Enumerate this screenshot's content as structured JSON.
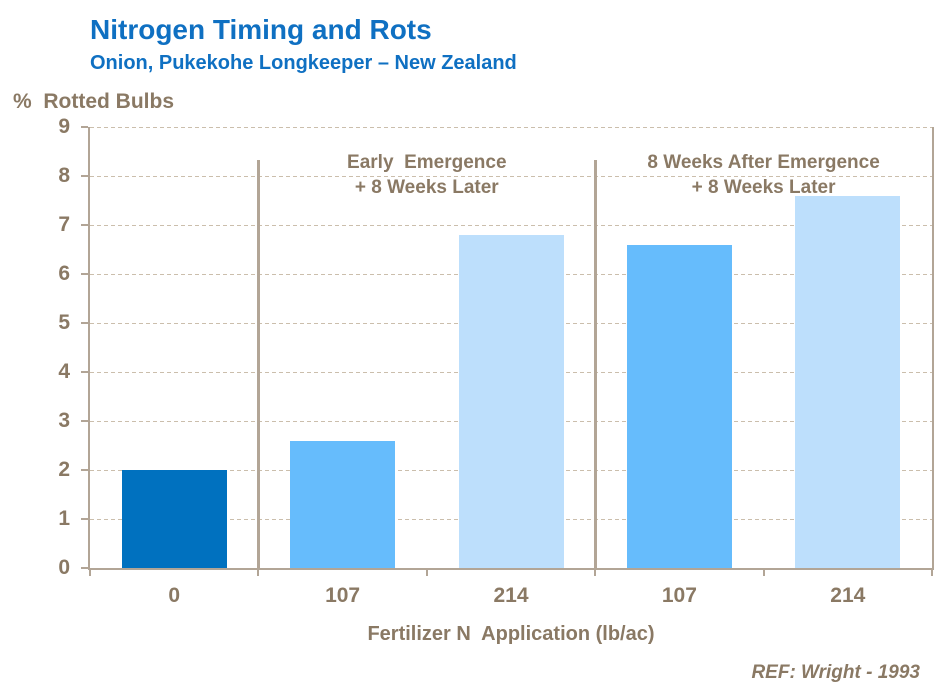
{
  "chart_data": {
    "type": "bar",
    "title": "Nitrogen Timing and Rots",
    "subtitle": "Onion, Pukekohe Longkeeper – New Zealand",
    "ylabel": "%  Rotted Bulbs",
    "xlabel": "Fertilizer N  Application (lb/ac)",
    "ref": "REF: Wright - 1993",
    "ylim": [
      0,
      9
    ],
    "ytick_step": 1,
    "grid": "horizontal-dashed",
    "legend": "none",
    "categories": [
      "0",
      "107",
      "214",
      "107",
      "214"
    ],
    "values": [
      2,
      2.6,
      6.8,
      6.6,
      7.6
    ],
    "bar_colors": [
      "#0071BF",
      "#66BCFC",
      "#BDDFFC",
      "#66BCFC",
      "#BDDFFC"
    ],
    "groups": [
      {
        "line1": "Early  Emergence",
        "line2": "+ 8 Weeks Later",
        "start_boundary": 1,
        "span": 2
      },
      {
        "line1": "8 Weeks After Emergence",
        "line2": "+ 8 Weeks Later",
        "start_boundary": 3,
        "span": 2
      }
    ],
    "colors": {
      "title_blue": "#0F70C2",
      "text_brown": "#8A7964",
      "axis_line": "#B2A596",
      "gridline": "#CBBEAC",
      "bar_dark_blue": "#0071BF",
      "bar_medium_blue": "#66BCFC",
      "bar_light_blue": "#BDDFFC"
    }
  }
}
